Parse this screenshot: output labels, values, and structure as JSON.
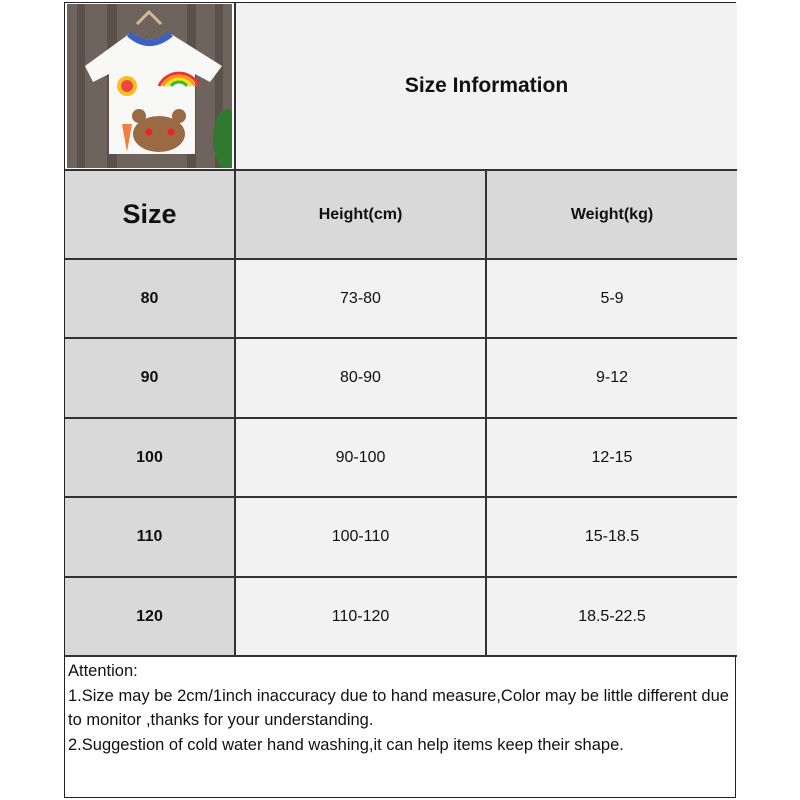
{
  "title": "Size Information",
  "colors": {
    "header_bg": "#d9d9d9",
    "size_col_bg": "#d9d9d9",
    "cell_bg": "#f2f2f2"
  },
  "product_image": "t-shirt-with-rainbow-and-bear-print",
  "table": {
    "headers": [
      "Size",
      "Height(cm)",
      "Weight(kg)"
    ],
    "rows": [
      {
        "size": "80",
        "height": "73-80",
        "weight": "5-9"
      },
      {
        "size": "90",
        "height": "80-90",
        "weight": "9-12"
      },
      {
        "size": "100",
        "height": "90-100",
        "weight": "12-15"
      },
      {
        "size": "110",
        "height": "100-110",
        "weight": "15-18.5"
      },
      {
        "size": "120",
        "height": "110-120",
        "weight": "18.5-22.5"
      }
    ]
  },
  "notes": {
    "heading": "Attention:",
    "lines": [
      "1.Size may be 2cm/1inch inaccuracy due to hand measure,Color may be little different due to monitor ,thanks for your understanding.",
      "2.Suggestion of cold water hand washing,it can help items keep their shape."
    ]
  }
}
